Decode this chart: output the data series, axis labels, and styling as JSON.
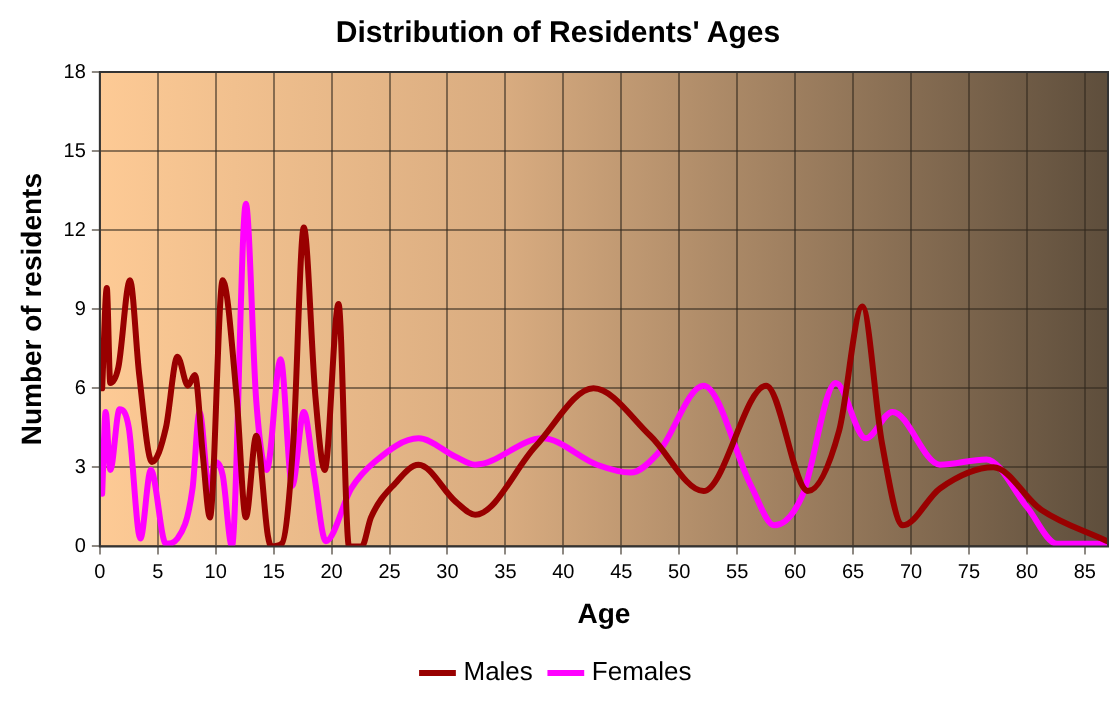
{
  "chart_data": {
    "type": "line",
    "title": "Distribution of Residents' Ages",
    "xlabel": "Age",
    "ylabel": "Number of residents",
    "xlim": [
      0,
      87
    ],
    "xticks": [
      0,
      5,
      10,
      15,
      20,
      25,
      30,
      35,
      40,
      45,
      50,
      55,
      60,
      65,
      70,
      75,
      80,
      85
    ],
    "ylim": [
      0,
      18
    ],
    "yticks": [
      0,
      3,
      6,
      9,
      12,
      15,
      18
    ],
    "grid": true,
    "legend": "bottom",
    "marker": "none",
    "line_style": "solid",
    "series": [
      {
        "name": "Males",
        "color": "#990000",
        "x": [
          0.2,
          0.6,
          0.9,
          1.6,
          2.6,
          3.4,
          4.5,
          5.7,
          6.7,
          7.6,
          8.2,
          8.9,
          9.5,
          10.6,
          11.8,
          12.6,
          13.5,
          14.5,
          14.8,
          15.7,
          16.7,
          17.6,
          18.6,
          19.4,
          20.6,
          21.5,
          22.6,
          23.4,
          25.5,
          27.5,
          30.7,
          32.4,
          37.6,
          42.6,
          47.5,
          52.1,
          57.5,
          61.1,
          63.8,
          65.8,
          67.5,
          69.3,
          72.5,
          77.1,
          81.2,
          86.9
        ],
        "values": [
          6.0,
          9.8,
          6.2,
          6.8,
          10.1,
          6.5,
          3.2,
          4.5,
          7.2,
          6.1,
          6.5,
          3.4,
          1.1,
          10.1,
          5.7,
          1.1,
          4.2,
          0.4,
          0,
          0.1,
          4.0,
          12.1,
          5.7,
          2.9,
          9.2,
          0,
          0,
          1.1,
          2.4,
          3.1,
          1.7,
          1.2,
          3.8,
          6.0,
          4.2,
          2.1,
          6.1,
          2.1,
          4.4,
          9.1,
          3.9,
          0.8,
          2.2,
          3.0,
          1.4,
          0.2
        ]
      },
      {
        "name": "Females",
        "color": "#ff00ff",
        "x": [
          0.2,
          0.5,
          0.9,
          1.7,
          2.5,
          3.5,
          4.4,
          5.7,
          6.7,
          8.0,
          8.6,
          9.5,
          9.9,
          10.6,
          11.4,
          12.6,
          13.5,
          14.4,
          15.6,
          16.6,
          17.6,
          18.5,
          19.5,
          21.7,
          23.7,
          27.5,
          30.7,
          32.4,
          38.2,
          42.9,
          45.8,
          48.1,
          52.1,
          56.2,
          58.2,
          60.6,
          63.5,
          66.1,
          68.4,
          72.5,
          76.5,
          80.0,
          82.6,
          86.9
        ],
        "values": [
          2.0,
          5.1,
          2.9,
          5.2,
          4.5,
          0.3,
          2.9,
          0.1,
          0.3,
          2.2,
          5.1,
          1.9,
          3.2,
          2.7,
          0,
          13.0,
          5.5,
          2.9,
          7.1,
          2.3,
          5.1,
          2.7,
          0.2,
          2.2,
          3.2,
          4.1,
          3.4,
          3.1,
          4.1,
          3.1,
          2.8,
          3.5,
          6.1,
          2.3,
          0.8,
          1.9,
          6.2,
          4.1,
          5.1,
          3.1,
          3.3,
          1.5,
          0.1,
          0.1
        ]
      }
    ]
  }
}
